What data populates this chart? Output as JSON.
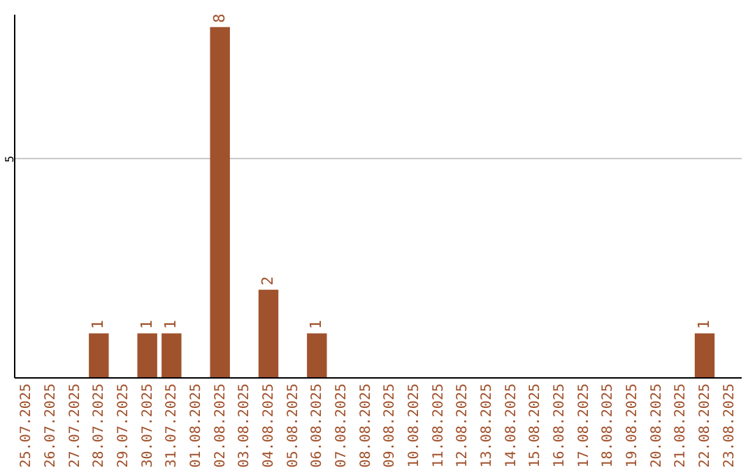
{
  "chart_data": {
    "type": "bar",
    "categories": [
      "25.07.2025",
      "26.07.2025",
      "27.07.2025",
      "28.07.2025",
      "29.07.2025",
      "30.07.2025",
      "31.07.2025",
      "01.08.2025",
      "02.08.2025",
      "03.08.2025",
      "04.08.2025",
      "05.08.2025",
      "06.08.2025",
      "07.08.2025",
      "08.08.2025",
      "09.08.2025",
      "10.08.2025",
      "11.08.2025",
      "12.08.2025",
      "13.08.2025",
      "14.08.2025",
      "15.08.2025",
      "16.08.2025",
      "17.08.2025",
      "18.08.2025",
      "19.08.2025",
      "20.08.2025",
      "21.08.2025",
      "22.08.2025",
      "23.08.2025"
    ],
    "values": [
      null,
      null,
      null,
      1,
      null,
      1,
      1,
      null,
      8,
      null,
      2,
      null,
      1,
      null,
      null,
      null,
      null,
      null,
      null,
      null,
      null,
      null,
      null,
      null,
      null,
      null,
      null,
      null,
      1,
      null
    ],
    "color": "#a0522d",
    "ylim": [
      0,
      8.3
    ],
    "yticks": [
      5
    ],
    "grid": "y",
    "data_labels": true
  }
}
